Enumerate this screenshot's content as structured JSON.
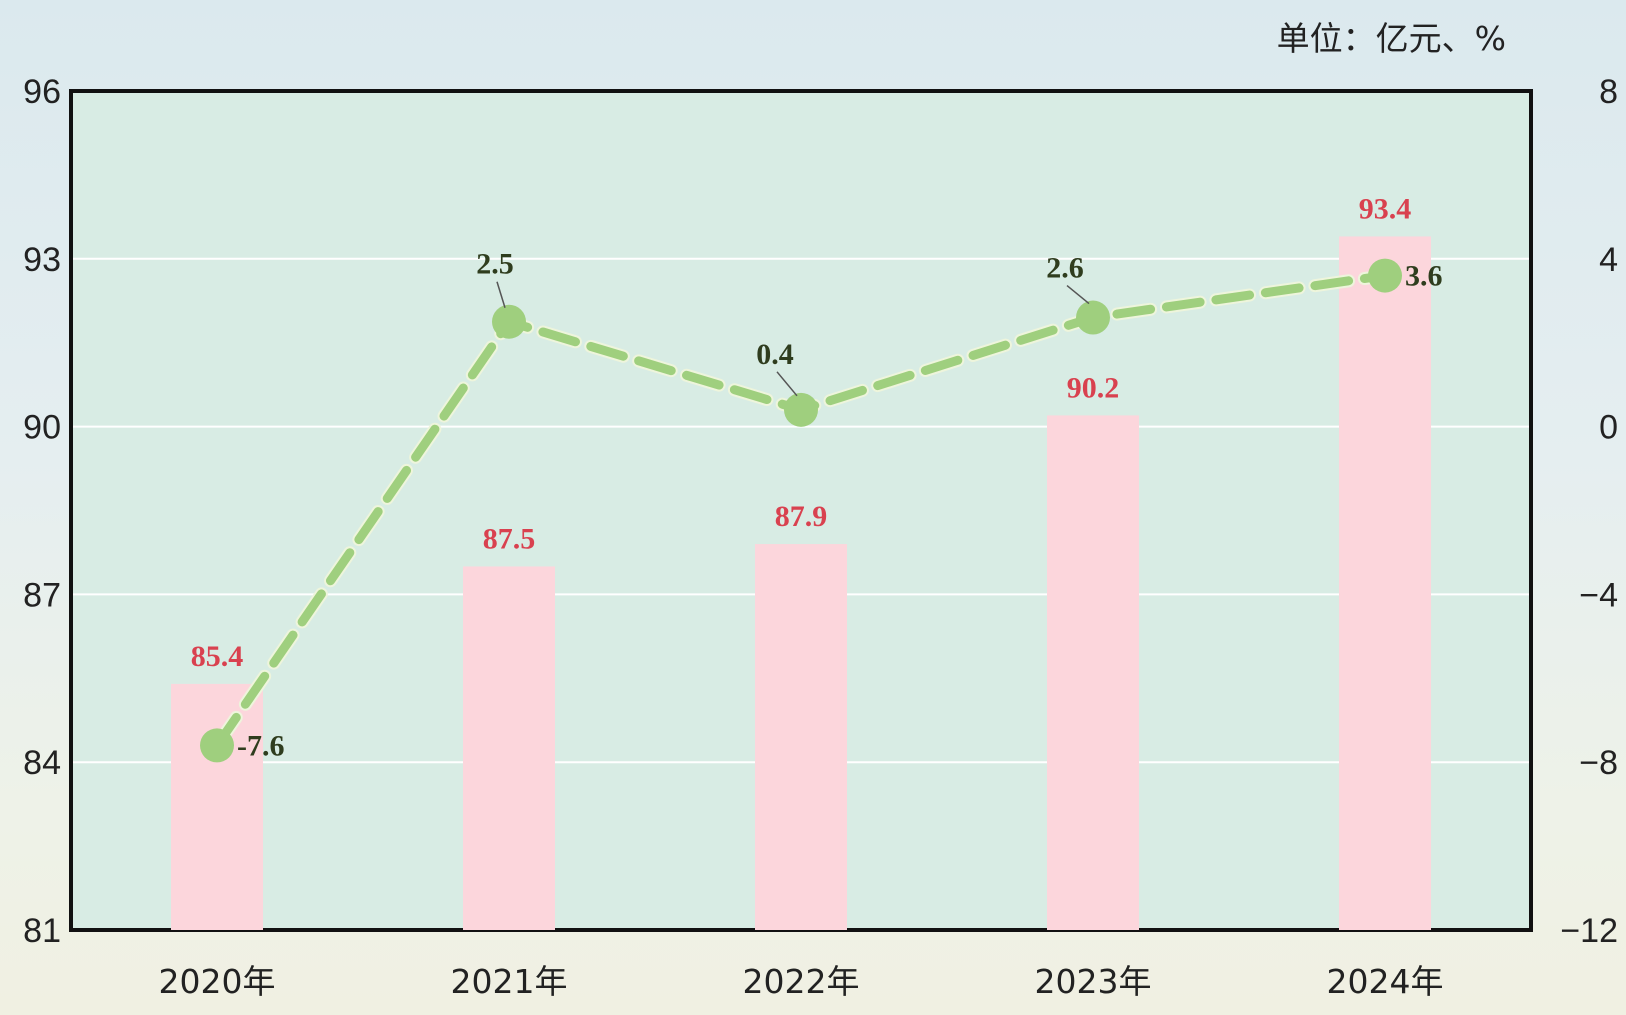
{
  "chart_data": {
    "type": "bar",
    "unit_label": "单位：亿元、%",
    "categories": [
      "2020年",
      "2021年",
      "2022年",
      "2023年",
      "2024年"
    ],
    "series": [
      {
        "type": "bar",
        "axis": "left",
        "values": [
          85.4,
          87.5,
          87.9,
          90.2,
          93.4
        ],
        "labels": [
          "85.4",
          "87.5",
          "87.9",
          "90.2",
          "93.4"
        ],
        "color": "#fcd6dc"
      },
      {
        "type": "line",
        "axis": "right",
        "values": [
          -7.6,
          2.5,
          0.4,
          2.6,
          3.6
        ],
        "labels": [
          "-7.6",
          "2.5",
          "0.4",
          "2.6",
          "3.6"
        ],
        "color": "#9fcf7e",
        "style": "dashed"
      }
    ],
    "y_left": {
      "min": 81,
      "max": 96,
      "ticks": [
        "96",
        "93",
        "90",
        "87",
        "84",
        "81"
      ]
    },
    "y_right": {
      "min": -12,
      "max": 8,
      "ticks": [
        "8",
        "4",
        "0",
        "−4",
        "−8",
        "−12"
      ]
    },
    "plot_background": "#d8ece4",
    "grid": true
  }
}
